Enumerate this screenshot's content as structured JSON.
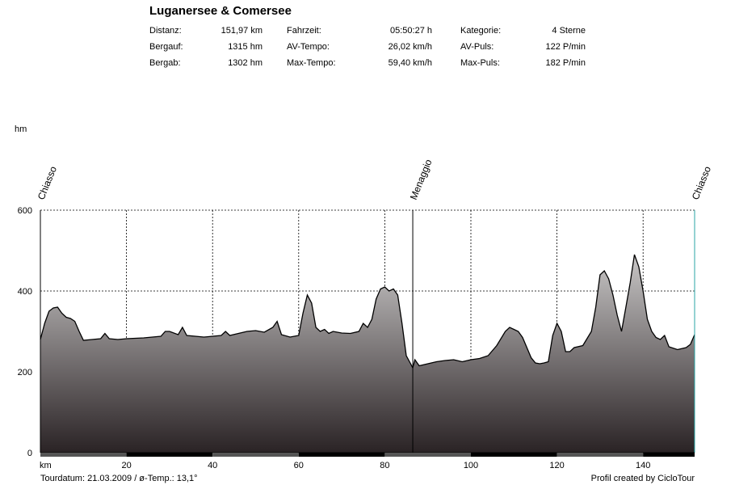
{
  "header": {
    "title": "Luganersee & Comersee",
    "stats": [
      {
        "label": "Distanz:",
        "value": "151,97 km"
      },
      {
        "label": "Bergauf:",
        "value": "1315 hm"
      },
      {
        "label": "Bergab:",
        "value": "1302 hm"
      },
      {
        "label": "Fahrzeit:",
        "value": "05:50:27 h"
      },
      {
        "label": "AV-Tempo:",
        "value": "26,02 km/h"
      },
      {
        "label": "Max-Tempo:",
        "value": "59,40 km/h"
      },
      {
        "label": "Kategorie:",
        "value": "4 Sterne"
      },
      {
        "label": "AV-Puls:",
        "value": "122 P/min"
      },
      {
        "label": "Max-Puls:",
        "value": "182 P/min"
      }
    ]
  },
  "footer": {
    "left": "Tourdatum: 21.03.2009  /  ø-Temp.: 13,1°",
    "right": "Profil created by CicloTour"
  },
  "colors": {
    "fill_top": "#c8c6c6",
    "fill_bottom": "#2a2325",
    "line": "#000000",
    "grid": "#000000",
    "right_edge": "#2aa6a6"
  },
  "chart_data": {
    "type": "area",
    "ylabel": "hm",
    "xlabel": "km",
    "xlim": [
      0,
      151.97
    ],
    "ylim": [
      0,
      600
    ],
    "xticks": [
      20,
      40,
      60,
      80,
      100,
      120,
      140
    ],
    "yticks": [
      0,
      200,
      400,
      600
    ],
    "waypoints": [
      {
        "name": "Chiasso",
        "km": 0
      },
      {
        "name": "Menaggio",
        "km": 86.5
      },
      {
        "name": "Chiasso",
        "km": 151.97
      }
    ],
    "x": [
      0,
      1,
      2,
      3,
      4,
      5,
      6,
      7,
      8,
      9,
      10,
      12,
      14,
      15,
      16,
      18,
      20,
      22,
      24,
      26,
      28,
      29,
      30,
      32,
      33,
      34,
      36,
      38,
      40,
      42,
      43,
      44,
      46,
      48,
      50,
      52,
      54,
      55,
      56,
      58,
      60,
      61,
      62,
      63,
      64,
      65,
      66,
      67,
      68,
      70,
      72,
      74,
      75,
      76,
      77,
      78,
      79,
      80,
      81,
      82,
      83,
      84,
      85,
      86,
      86.5,
      87,
      88,
      90,
      92,
      94,
      96,
      98,
      100,
      102,
      104,
      106,
      108,
      109,
      110,
      111,
      112,
      113,
      114,
      115,
      116,
      117,
      118,
      119,
      120,
      121,
      122,
      123,
      124,
      126,
      128,
      129,
      130,
      131,
      132,
      133,
      134,
      135,
      136,
      137,
      138,
      139,
      140,
      141,
      142,
      143,
      144,
      145,
      146,
      148,
      150,
      151,
      151.97
    ],
    "y": [
      280,
      320,
      350,
      358,
      360,
      345,
      335,
      332,
      325,
      300,
      278,
      280,
      282,
      295,
      282,
      280,
      282,
      283,
      284,
      286,
      288,
      300,
      300,
      292,
      310,
      290,
      288,
      286,
      288,
      290,
      300,
      290,
      295,
      300,
      302,
      298,
      310,
      325,
      292,
      286,
      290,
      345,
      390,
      370,
      310,
      300,
      305,
      295,
      300,
      296,
      295,
      300,
      320,
      310,
      330,
      380,
      405,
      410,
      400,
      405,
      390,
      320,
      240,
      220,
      210,
      230,
      215,
      220,
      225,
      228,
      230,
      225,
      230,
      233,
      240,
      265,
      300,
      310,
      305,
      300,
      285,
      260,
      235,
      222,
      220,
      222,
      225,
      290,
      320,
      300,
      250,
      250,
      260,
      265,
      300,
      360,
      440,
      450,
      430,
      390,
      340,
      300,
      360,
      420,
      490,
      460,
      400,
      330,
      300,
      285,
      280,
      290,
      262,
      255,
      260,
      268,
      292
    ]
  }
}
